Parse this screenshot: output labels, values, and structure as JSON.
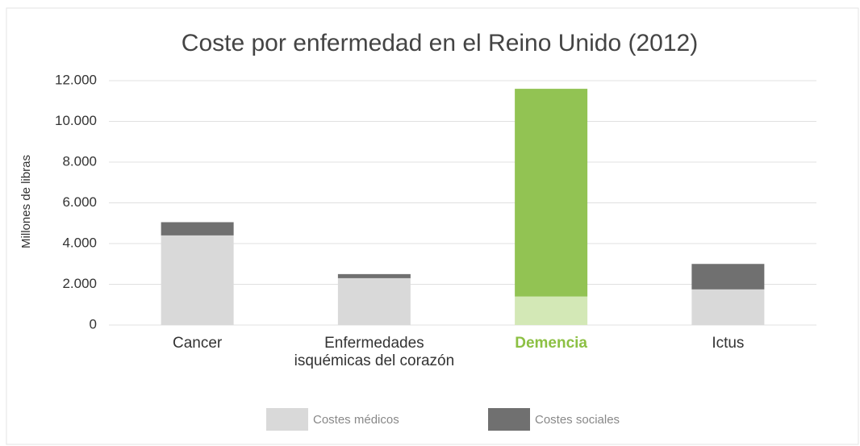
{
  "chart_data": {
    "type": "stacked_bar",
    "title": "Coste por enfermedad en el Reino Unido (2012)",
    "y_label": "Millones de libras",
    "categories": [
      "Cancer",
      "Enfermedades\nisquémicas del corazón",
      "Demencia",
      "Ictus"
    ],
    "category_colors": [
      "#333333",
      "#333333",
      "#8cc043",
      "#333333"
    ],
    "series": [
      {
        "name": "Costes médicos",
        "color": "#d9d9d9",
        "point_colors": [
          "#d9d9d9",
          "#d9d9d9",
          "#d3e8b6",
          "#d9d9d9"
        ],
        "values": [
          4400,
          2300,
          1400,
          1750
        ]
      },
      {
        "name": "Costes sociales",
        "color": "#707070",
        "point_colors": [
          "#707070",
          "#707070",
          "#92c353",
          "#707070"
        ],
        "values": [
          650,
          200,
          10200,
          1250
        ]
      }
    ],
    "ylim": [
      0,
      12000
    ],
    "yticks": [
      0,
      {
        "value": 2000,
        "label": "2.000"
      },
      {
        "value": 4000,
        "label": "4.000"
      },
      {
        "value": 6000,
        "label": "6.000"
      },
      {
        "value": 8000,
        "label": "8.000"
      },
      {
        "value": 10000,
        "label": "10.000"
      },
      {
        "value": 12000,
        "label": "12.000"
      }
    ],
    "grid": true,
    "legend": "bottom"
  }
}
